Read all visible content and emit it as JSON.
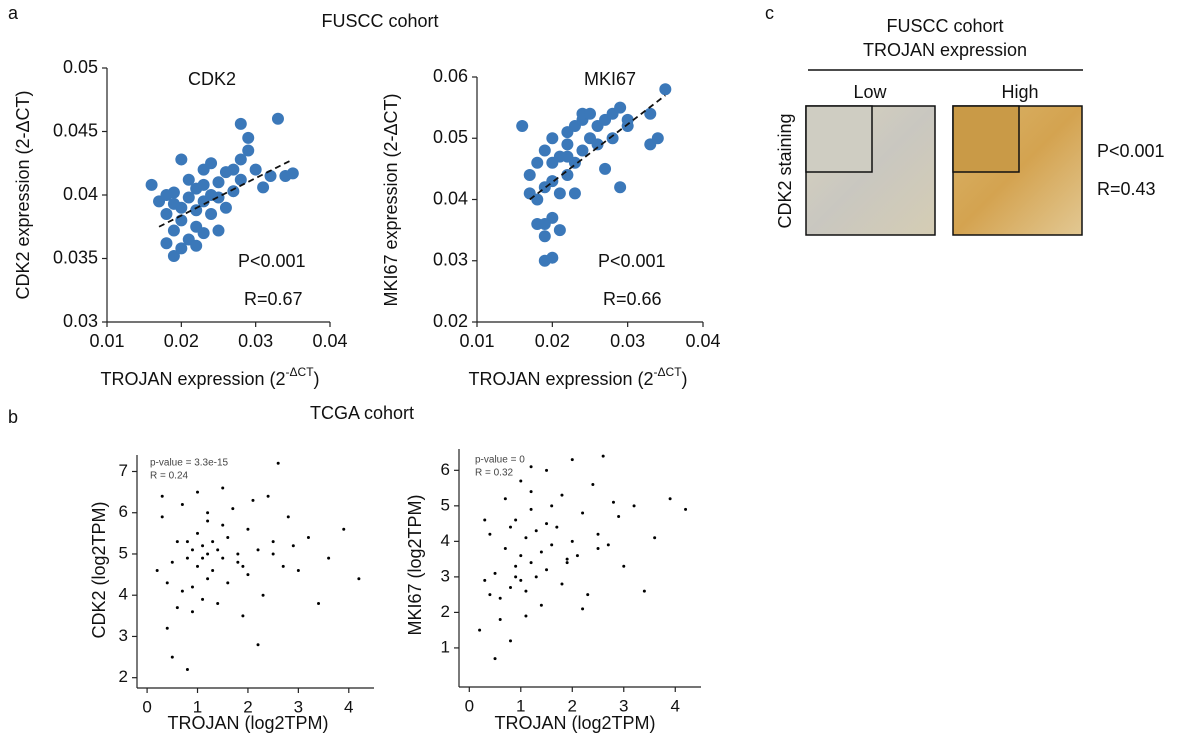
{
  "panels": [
    {
      "label": "a",
      "title": "FUSCC cohort"
    },
    {
      "label": "b",
      "title": "TCGA cohort"
    },
    {
      "label": "c"
    }
  ],
  "panel_c": {
    "title": [
      "FUSCC cohort",
      "TROJAN expression"
    ],
    "columns": [
      "Low",
      "High"
    ],
    "ylabel": "CDK2 staining",
    "annotations": [
      "P<0.001",
      "R=0.43"
    ]
  },
  "chart_data": [
    {
      "type": "scatter",
      "title": "CDK2",
      "color": "#3b78b9",
      "ylabel": "CDK2 expression (2-ΔCT)",
      "xlabel": [
        "TROJAN expression (2",
        "-ΔCT",
        ")"
      ],
      "xlim": [
        0.01,
        0.04
      ],
      "ylim": [
        0.03,
        0.05
      ],
      "xticks": [
        0.01,
        0.02,
        0.03,
        0.04
      ],
      "yticks": [
        0.03,
        0.035,
        0.04,
        0.045,
        0.05
      ],
      "annotations": [
        "P<0.001",
        "R=0.67"
      ],
      "trendline": {
        "x": [
          0.017,
          0.035
        ],
        "y": [
          0.0375,
          0.0428
        ]
      },
      "x": [
        0.016,
        0.017,
        0.018,
        0.018,
        0.019,
        0.019,
        0.019,
        0.019,
        0.02,
        0.02,
        0.02,
        0.02,
        0.021,
        0.021,
        0.021,
        0.022,
        0.022,
        0.022,
        0.023,
        0.023,
        0.023,
        0.024,
        0.024,
        0.024,
        0.025,
        0.025,
        0.025,
        0.026,
        0.026,
        0.027,
        0.027,
        0.028,
        0.028,
        0.029,
        0.029,
        0.03,
        0.031,
        0.032,
        0.033,
        0.034,
        0.035,
        0.028,
        0.022,
        0.018,
        0.023
      ],
      "values": [
        0.0408,
        0.0395,
        0.0362,
        0.0385,
        0.0352,
        0.0372,
        0.0393,
        0.0402,
        0.0358,
        0.038,
        0.039,
        0.0428,
        0.0365,
        0.0398,
        0.0412,
        0.0375,
        0.0388,
        0.0405,
        0.037,
        0.0395,
        0.042,
        0.0385,
        0.04,
        0.0425,
        0.0372,
        0.041,
        0.0398,
        0.0418,
        0.039,
        0.0403,
        0.042,
        0.0428,
        0.0412,
        0.0435,
        0.0445,
        0.042,
        0.0406,
        0.0415,
        0.046,
        0.0415,
        0.0417,
        0.0456,
        0.036,
        0.04,
        0.0408
      ]
    },
    {
      "type": "scatter",
      "title": "MKI67",
      "color": "#3b78b9",
      "ylabel": "MKI67 expression (2-ΔCT)",
      "xlabel": [
        "TROJAN expression (2",
        "-ΔCT",
        ")"
      ],
      "xlim": [
        0.01,
        0.04
      ],
      "ylim": [
        0.02,
        0.06
      ],
      "xticks": [
        0.01,
        0.02,
        0.03,
        0.04
      ],
      "yticks": [
        0.02,
        0.03,
        0.04,
        0.05,
        0.06
      ],
      "annotations": [
        "P<0.001",
        "R=0.66"
      ],
      "trendline": {
        "x": [
          0.017,
          0.035
        ],
        "y": [
          0.04,
          0.057
        ]
      },
      "x": [
        0.016,
        0.017,
        0.018,
        0.018,
        0.018,
        0.019,
        0.019,
        0.019,
        0.019,
        0.02,
        0.02,
        0.02,
        0.02,
        0.021,
        0.021,
        0.021,
        0.022,
        0.022,
        0.022,
        0.023,
        0.023,
        0.023,
        0.024,
        0.024,
        0.024,
        0.025,
        0.025,
        0.026,
        0.026,
        0.027,
        0.027,
        0.028,
        0.028,
        0.029,
        0.029,
        0.03,
        0.03,
        0.033,
        0.033,
        0.034,
        0.035,
        0.02,
        0.019,
        0.022,
        0.017
      ],
      "values": [
        0.052,
        0.044,
        0.036,
        0.04,
        0.046,
        0.03,
        0.034,
        0.042,
        0.048,
        0.037,
        0.043,
        0.046,
        0.05,
        0.041,
        0.047,
        0.035,
        0.044,
        0.049,
        0.051,
        0.046,
        0.052,
        0.041,
        0.048,
        0.053,
        0.054,
        0.05,
        0.054,
        0.052,
        0.049,
        0.053,
        0.045,
        0.05,
        0.054,
        0.055,
        0.042,
        0.053,
        0.052,
        0.054,
        0.049,
        0.05,
        0.058,
        0.0305,
        0.036,
        0.047,
        0.041
      ]
    },
    {
      "type": "scatter",
      "color": "#000000",
      "ylabel": "CDK2 (log2TPM)",
      "xlabel": "TROJAN (log2TPM)",
      "xlim": [
        -0.2,
        4.5
      ],
      "ylim": [
        1.75,
        7.4
      ],
      "xticks": [
        0,
        1,
        2,
        3,
        4
      ],
      "yticks": [
        2,
        3,
        4,
        5,
        6,
        7
      ],
      "annotations": [
        "p-value = 3.3e-15",
        "R = 0.24"
      ],
      "x": [
        0.2,
        0.3,
        0.4,
        0.5,
        0.5,
        0.6,
        0.7,
        0.7,
        0.8,
        0.8,
        0.9,
        0.9,
        1.0,
        1.0,
        1.0,
        1.1,
        1.1,
        1.1,
        1.2,
        1.2,
        1.2,
        1.3,
        1.3,
        1.4,
        1.4,
        1.5,
        1.5,
        1.6,
        1.6,
        1.7,
        1.8,
        1.8,
        1.9,
        2.0,
        2.0,
        2.1,
        2.2,
        2.3,
        2.4,
        2.5,
        2.6,
        2.7,
        2.8,
        2.9,
        3.0,
        3.2,
        3.4,
        3.6,
        3.9,
        4.2,
        0.3,
        0.6,
        0.9,
        1.2,
        1.5,
        2.2,
        2.5,
        0.4,
        0.8,
        1.9
      ],
      "values": [
        4.6,
        5.9,
        3.2,
        4.8,
        2.5,
        5.3,
        4.1,
        6.2,
        4.9,
        2.2,
        5.1,
        3.6,
        4.7,
        5.5,
        6.5,
        4.9,
        5.2,
        3.9,
        5.0,
        4.4,
        6.0,
        5.3,
        4.6,
        5.1,
        3.8,
        4.9,
        5.7,
        4.3,
        5.4,
        6.1,
        4.8,
        5.0,
        3.5,
        5.6,
        4.5,
        6.3,
        5.1,
        4.0,
        6.4,
        5.3,
        7.2,
        4.7,
        5.9,
        5.2,
        4.6,
        5.4,
        3.8,
        4.9,
        5.6,
        4.4,
        6.4,
        3.7,
        4.2,
        5.8,
        6.6,
        2.8,
        5.0,
        4.3,
        5.3,
        4.7
      ]
    },
    {
      "type": "scatter",
      "color": "#000000",
      "ylabel": "MKI67 (log2TPM)",
      "xlabel": "TROJAN (log2TPM)",
      "xlim": [
        -0.2,
        4.5
      ],
      "ylim": [
        -0.1,
        6.6
      ],
      "xticks": [
        0,
        1,
        2,
        3,
        4
      ],
      "yticks": [
        1,
        2,
        3,
        4,
        5,
        6
      ],
      "annotations": [
        "p-value = 0",
        "R = 0.32"
      ],
      "x": [
        0.2,
        0.3,
        0.4,
        0.5,
        0.5,
        0.6,
        0.7,
        0.7,
        0.8,
        0.8,
        0.9,
        0.9,
        1.0,
        1.0,
        1.0,
        1.1,
        1.1,
        1.1,
        1.2,
        1.2,
        1.2,
        1.3,
        1.3,
        1.4,
        1.4,
        1.5,
        1.5,
        1.6,
        1.6,
        1.7,
        1.8,
        1.8,
        1.9,
        2.0,
        2.0,
        2.1,
        2.2,
        2.3,
        2.4,
        2.5,
        2.6,
        2.7,
        2.8,
        2.9,
        3.0,
        3.2,
        3.4,
        3.6,
        3.9,
        4.2,
        0.3,
        0.6,
        0.9,
        1.2,
        1.5,
        2.2,
        2.5,
        0.4,
        0.8,
        1.9
      ],
      "values": [
        1.5,
        2.9,
        4.2,
        3.1,
        0.7,
        2.4,
        3.8,
        5.2,
        2.7,
        1.2,
        3.3,
        4.6,
        2.9,
        3.6,
        5.7,
        1.9,
        4.1,
        2.6,
        3.4,
        4.9,
        6.1,
        3.0,
        4.3,
        3.7,
        2.2,
        4.5,
        3.2,
        5.0,
        3.9,
        4.4,
        2.8,
        5.3,
        3.5,
        4.0,
        6.3,
        3.6,
        4.8,
        2.5,
        5.6,
        4.2,
        6.4,
        3.9,
        5.1,
        4.7,
        3.3,
        5.0,
        2.6,
        4.1,
        5.2,
        4.9,
        4.6,
        1.8,
        3.0,
        5.4,
        6.0,
        2.1,
        3.8,
        2.5,
        4.4,
        3.4
      ]
    }
  ]
}
